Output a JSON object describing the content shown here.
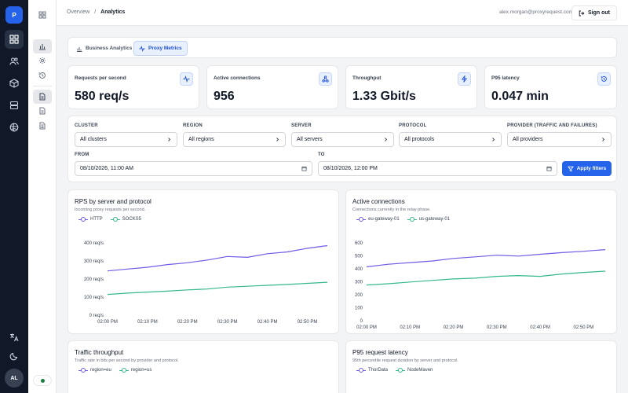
{
  "app": {
    "logo_letter": "P",
    "avatar_initials": "AL"
  },
  "header": {
    "breadcrumb_root": "Overview",
    "breadcrumb_sep": "/",
    "breadcrumb_current": "Analytics",
    "user_email": "alex.morgan@proxyrequest.com",
    "signout_label": "Sign out"
  },
  "tabs": [
    {
      "label": "Business Analytics",
      "icon": "bar-chart-icon",
      "active": false
    },
    {
      "label": "Proxy Metrics",
      "icon": "activity-icon",
      "active": true
    }
  ],
  "kpis": [
    {
      "label": "Requests per second",
      "value": "580 req/s",
      "icon": "activity-icon"
    },
    {
      "label": "Active connections",
      "value": "956",
      "icon": "network-icon"
    },
    {
      "label": "Throughput",
      "value": "1.33 Gbit/s",
      "icon": "bolt-icon"
    },
    {
      "label": "P95 latency",
      "value": "0.047 min",
      "icon": "clock-icon"
    }
  ],
  "filters": {
    "cluster": {
      "label": "CLUSTER",
      "value": "All clusters"
    },
    "region": {
      "label": "REGION",
      "value": "All regions"
    },
    "server": {
      "label": "SERVER",
      "value": "All servers"
    },
    "protocol": {
      "label": "PROTOCOL",
      "value": "All protocols"
    },
    "provider": {
      "label": "PROVIDER (TRAFFIC AND FAILURES)",
      "value": "All providers"
    },
    "from": {
      "label": "FROM",
      "value": "08/10/2026, 11:00 AM"
    },
    "to": {
      "label": "TO",
      "value": "08/10/2026, 12:00 PM"
    },
    "apply_label": "Apply filters"
  },
  "charts": [
    {
      "title": "RPS by server and protocol",
      "subtitle": "Incoming proxy requests per second."
    },
    {
      "title": "Active connections",
      "subtitle": "Connections currently in the relay phase."
    },
    {
      "title": "Traffic throughput",
      "subtitle": "Traffic rate in bits per second by provider and protocol."
    },
    {
      "title": "P95 request latency",
      "subtitle": "95th percentile request duration by server and protocol."
    }
  ],
  "chart_data": [
    {
      "type": "line",
      "title": "RPS by server and protocol",
      "x": [
        "02:00 PM",
        "02:05 PM",
        "02:10 PM",
        "02:15 PM",
        "02:20 PM",
        "02:25 PM",
        "02:30 PM",
        "02:35 PM",
        "02:40 PM",
        "02:45 PM",
        "02:50 PM",
        "02:55 PM"
      ],
      "x_ticks": [
        "02:00 PM",
        "02:10 PM",
        "02:20 PM",
        "02:30 PM",
        "02:40 PM",
        "02:50 PM"
      ],
      "y_ticks": [
        "0 req/s",
        "100 req/s",
        "200 req/s",
        "300 req/s",
        "400 req/s"
      ],
      "ylim": [
        0,
        400
      ],
      "series": [
        {
          "name": "HTTP",
          "color": "#6d5ce7",
          "values": [
            245,
            255,
            265,
            280,
            290,
            305,
            325,
            320,
            340,
            350,
            370,
            385
          ]
        },
        {
          "name": "SOCKS5",
          "color": "#34b98a",
          "values": [
            115,
            122,
            128,
            133,
            140,
            145,
            155,
            160,
            165,
            170,
            176,
            182
          ]
        }
      ]
    },
    {
      "type": "line",
      "title": "Active connections",
      "x": [
        "02:00 PM",
        "02:05 PM",
        "02:10 PM",
        "02:15 PM",
        "02:20 PM",
        "02:25 PM",
        "02:30 PM",
        "02:35 PM",
        "02:40 PM",
        "02:45 PM",
        "02:50 PM",
        "02:55 PM"
      ],
      "x_ticks": [
        "02:00 PM",
        "02:10 PM",
        "02:20 PM",
        "02:30 PM",
        "02:40 PM",
        "02:50 PM"
      ],
      "y_ticks": [
        "0",
        "100",
        "200",
        "300",
        "400",
        "500",
        "600"
      ],
      "ylim": [
        0,
        600
      ],
      "series": [
        {
          "name": "eu-gateway-01",
          "color": "#6d5ce7",
          "values": [
            415,
            435,
            448,
            460,
            480,
            492,
            505,
            498,
            512,
            525,
            535,
            548
          ]
        },
        {
          "name": "us-gateway-01",
          "color": "#34b98a",
          "values": [
            275,
            285,
            298,
            310,
            322,
            328,
            342,
            348,
            342,
            360,
            372,
            382
          ]
        }
      ]
    },
    {
      "type": "line",
      "title": "Traffic throughput",
      "series": [
        {
          "name": "region=eu",
          "color": "#6d5ce7",
          "values": []
        },
        {
          "name": "region=us",
          "color": "#34b98a",
          "values": []
        }
      ]
    },
    {
      "type": "line",
      "title": "P95 request latency",
      "series": [
        {
          "name": "ThorData",
          "color": "#6d5ce7",
          "values": []
        },
        {
          "name": "NodeMaven",
          "color": "#34b98a",
          "values": []
        }
      ]
    }
  ]
}
